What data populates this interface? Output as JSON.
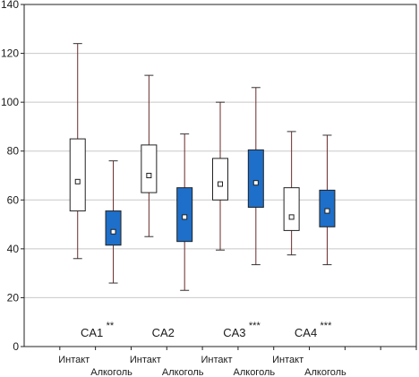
{
  "chart_data": {
    "type": "boxplot",
    "title": "",
    "xlabel": "",
    "ylabel": "",
    "ylim": [
      0,
      140
    ],
    "yticks": [
      "0",
      "20",
      "40",
      "60",
      "80",
      "100",
      "120",
      "140"
    ],
    "grid": true,
    "legend": "none",
    "series_colors": {
      "Интакт": "#ffffff",
      "Алкоголь": "#1e6fc9"
    },
    "groups": [
      {
        "label": "CA1",
        "significance": "**"
      },
      {
        "label": "CA2",
        "significance": ""
      },
      {
        "label": "CA3",
        "significance": "***"
      },
      {
        "label": "CA4",
        "significance": "***"
      }
    ],
    "boxes": [
      {
        "group": "CA1",
        "category": "Интакт",
        "min": 36,
        "q1": 55.5,
        "mean": 67.5,
        "q3": 85,
        "max": 124
      },
      {
        "group": "CA1",
        "category": "Алкоголь",
        "min": 26,
        "q1": 41.5,
        "mean": 47,
        "q3": 55.5,
        "max": 76
      },
      {
        "group": "CA2",
        "category": "Интакт",
        "min": 45,
        "q1": 63,
        "mean": 70,
        "q3": 82.5,
        "max": 111
      },
      {
        "group": "CA2",
        "category": "Алкоголь",
        "min": 23,
        "q1": 43,
        "mean": 53,
        "q3": 65,
        "max": 87
      },
      {
        "group": "CA3",
        "category": "Интакт",
        "min": 39.5,
        "q1": 60,
        "mean": 66.5,
        "q3": 77,
        "max": 100
      },
      {
        "group": "CA3",
        "category": "Алкоголь",
        "min": 33.5,
        "q1": 57,
        "mean": 67,
        "q3": 80.5,
        "max": 106
      },
      {
        "group": "CA4",
        "category": "Интакт",
        "min": 37.5,
        "q1": 47.5,
        "mean": 53,
        "q3": 65,
        "max": 88
      },
      {
        "group": "CA4",
        "category": "Алкоголь",
        "min": 33.5,
        "q1": 49,
        "mean": 55.5,
        "q3": 64,
        "max": 86.5
      }
    ]
  }
}
